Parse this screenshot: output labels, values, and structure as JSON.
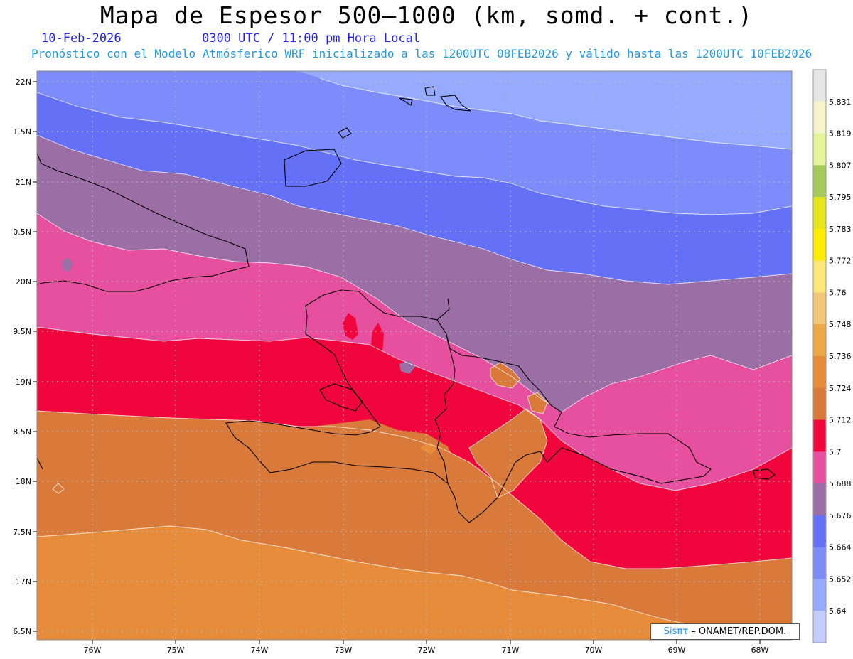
{
  "header": {
    "title": "Mapa de Espesor 500—1000 (km, somd. + cont.)",
    "date": "10-Feb-2026",
    "time": "0300 UTC / 11:00 pm Hora Local",
    "subtitle": "Pronóstico con el Modelo Atmósferico WRF inicializado a las 1200UTC_08FEB2026 y válido hasta las  1200UTC_10FEB2026"
  },
  "axes": {
    "lat_labels": [
      "22N",
      "1.5N",
      "21N",
      "0.5N",
      "20N",
      "9.5N",
      "19N",
      "8.5N",
      "18N",
      "7.5N",
      "17N",
      "6.5N"
    ],
    "lon_labels": [
      "76W",
      "75W",
      "74W",
      "73W",
      "72W",
      "71W",
      "70W",
      "69W",
      "68W"
    ]
  },
  "colorbar": {
    "labels": [
      "5.831",
      "5.819",
      "5.807",
      "5.795",
      "5.783",
      "5.772",
      "5.76",
      "5.748",
      "5.736",
      "5.724",
      "5.712",
      "5.7",
      "5.688",
      "5.676",
      "5.664",
      "5.652",
      "5.64"
    ],
    "colors": [
      "#e6e6e6",
      "#f5f5cc",
      "#e6f59a",
      "#a5cc5a",
      "#e6e61a",
      "#ffee00",
      "#ffe87a",
      "#f0c878",
      "#eca846",
      "#e68c3a",
      "#d97a3a",
      "#f0063c",
      "#e6509e",
      "#9b6ea5",
      "#6470f5",
      "#7d8cfa",
      "#96aaff",
      "#c3cdff"
    ]
  },
  "credit": {
    "brand": "Sisπτ",
    "text": "– ONAMET/REP.DOM."
  },
  "colors": {
    "band_lightblue": "#96aaff",
    "band_blue1": "#7d8cfa",
    "band_blue2": "#6470f5",
    "band_purple": "#9b6ea5",
    "band_pink": "#e6509e",
    "band_red": "#f0063c",
    "band_orange_dark": "#d97a3a",
    "band_orange": "#e68c3a"
  }
}
